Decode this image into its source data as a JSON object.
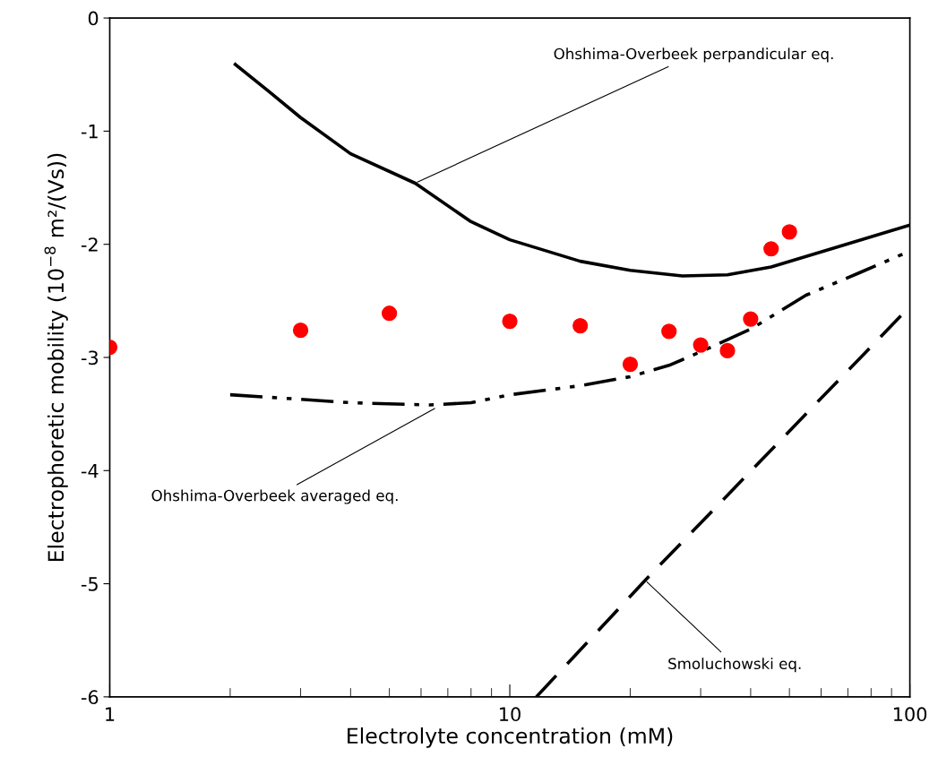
{
  "chart_data": {
    "type": "scatter",
    "xlabel": "Electrolyte concentration (mM)",
    "ylabel": "Electrophoretic mobility (10$^{−8}$ m²/(Vs))",
    "log": "x",
    "xlim": [
      1,
      100
    ],
    "xticks": [
      1,
      10,
      100
    ],
    "ylim": [
      -6,
      0
    ],
    "yticks": [
      0,
      {
        "value": -1,
        "label": "-1"
      },
      {
        "value": -2,
        "label": "-2"
      },
      {
        "value": -3,
        "label": "-3"
      },
      {
        "value": -4,
        "label": "-4"
      },
      {
        "value": -5,
        "label": "-5"
      },
      {
        "value": -6,
        "label": "-6"
      }
    ],
    "grid": false,
    "legend": false,
    "series": [
      {
        "color": "#ff0000",
        "marker": "circle",
        "x": [
          1,
          3,
          5,
          10,
          15,
          20,
          25,
          30,
          35,
          40,
          45,
          50
        ],
        "values": [
          -2.91,
          -2.76,
          -2.61,
          -2.68,
          -2.72,
          -3.06,
          -2.77,
          -2.89,
          -2.94,
          -2.66,
          -2.04,
          -1.89
        ]
      },
      {
        "type": "line",
        "color": "#000000",
        "line_style": "solid",
        "x": [
          2.06,
          2.5,
          3,
          4,
          5.8,
          8,
          10,
          15,
          20,
          27,
          35,
          45,
          65,
          100
        ],
        "values": [
          -0.41,
          -0.65,
          -0.88,
          -1.2,
          -1.46,
          -1.8,
          -1.96,
          -2.15,
          -2.23,
          -2.28,
          -2.27,
          -2.2,
          -2.03,
          -1.83
        ]
      },
      {
        "type": "line",
        "color": "#000000",
        "line_style": "dashdotdot",
        "x": [
          2,
          3,
          4,
          6.3,
          8,
          10,
          15,
          20,
          25,
          30,
          40,
          55,
          75,
          100
        ],
        "values": [
          -3.33,
          -3.37,
          -3.4,
          -3.42,
          -3.4,
          -3.33,
          -3.25,
          -3.17,
          -3.07,
          -2.95,
          -2.75,
          -2.45,
          -2.25,
          -2.06
        ]
      },
      {
        "type": "line",
        "color": "#000000",
        "line_style": "dashed",
        "x": [
          11.65,
          21.8,
          100
        ],
        "values": [
          -6,
          -4.97,
          -2.55
        ]
      }
    ],
    "annotations": [
      {
        "text": "Ohshima-Overbeek perpandicular eq.",
        "x": 5.8,
        "y": -1.46
      },
      {
        "text": "Ohshima-Overbeek averaged eq.",
        "x": 6.57,
        "y": -3.44
      },
      {
        "text": "Smoluchowski eq.",
        "x": 21.8,
        "y": -4.97
      }
    ]
  }
}
